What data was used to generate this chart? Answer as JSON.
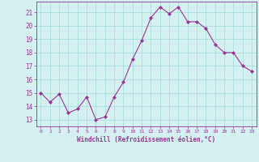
{
  "x": [
    0,
    1,
    2,
    3,
    4,
    5,
    6,
    7,
    8,
    9,
    10,
    11,
    12,
    13,
    14,
    15,
    16,
    17,
    18,
    19,
    20,
    21,
    22,
    23
  ],
  "y": [
    15.0,
    14.3,
    14.9,
    13.5,
    13.8,
    14.7,
    13.0,
    13.2,
    14.7,
    15.8,
    17.5,
    18.9,
    20.6,
    21.4,
    20.9,
    21.4,
    20.3,
    20.3,
    19.8,
    18.6,
    18.0,
    18.0,
    17.0,
    16.6
  ],
  "line_color": "#993399",
  "marker": "D",
  "marker_size": 2.0,
  "bg_color": "#d5f0f0",
  "grid_color": "#aadddd",
  "xlabel": "Windchill (Refroidissement éolien,°C)",
  "ylim": [
    12.5,
    21.8
  ],
  "yticks": [
    13,
    14,
    15,
    16,
    17,
    18,
    19,
    20,
    21
  ],
  "xticks": [
    0,
    1,
    2,
    3,
    4,
    5,
    6,
    7,
    8,
    9,
    10,
    11,
    12,
    13,
    14,
    15,
    16,
    17,
    18,
    19,
    20,
    21,
    22,
    23
  ],
  "tick_color": "#993399",
  "label_color": "#993399"
}
